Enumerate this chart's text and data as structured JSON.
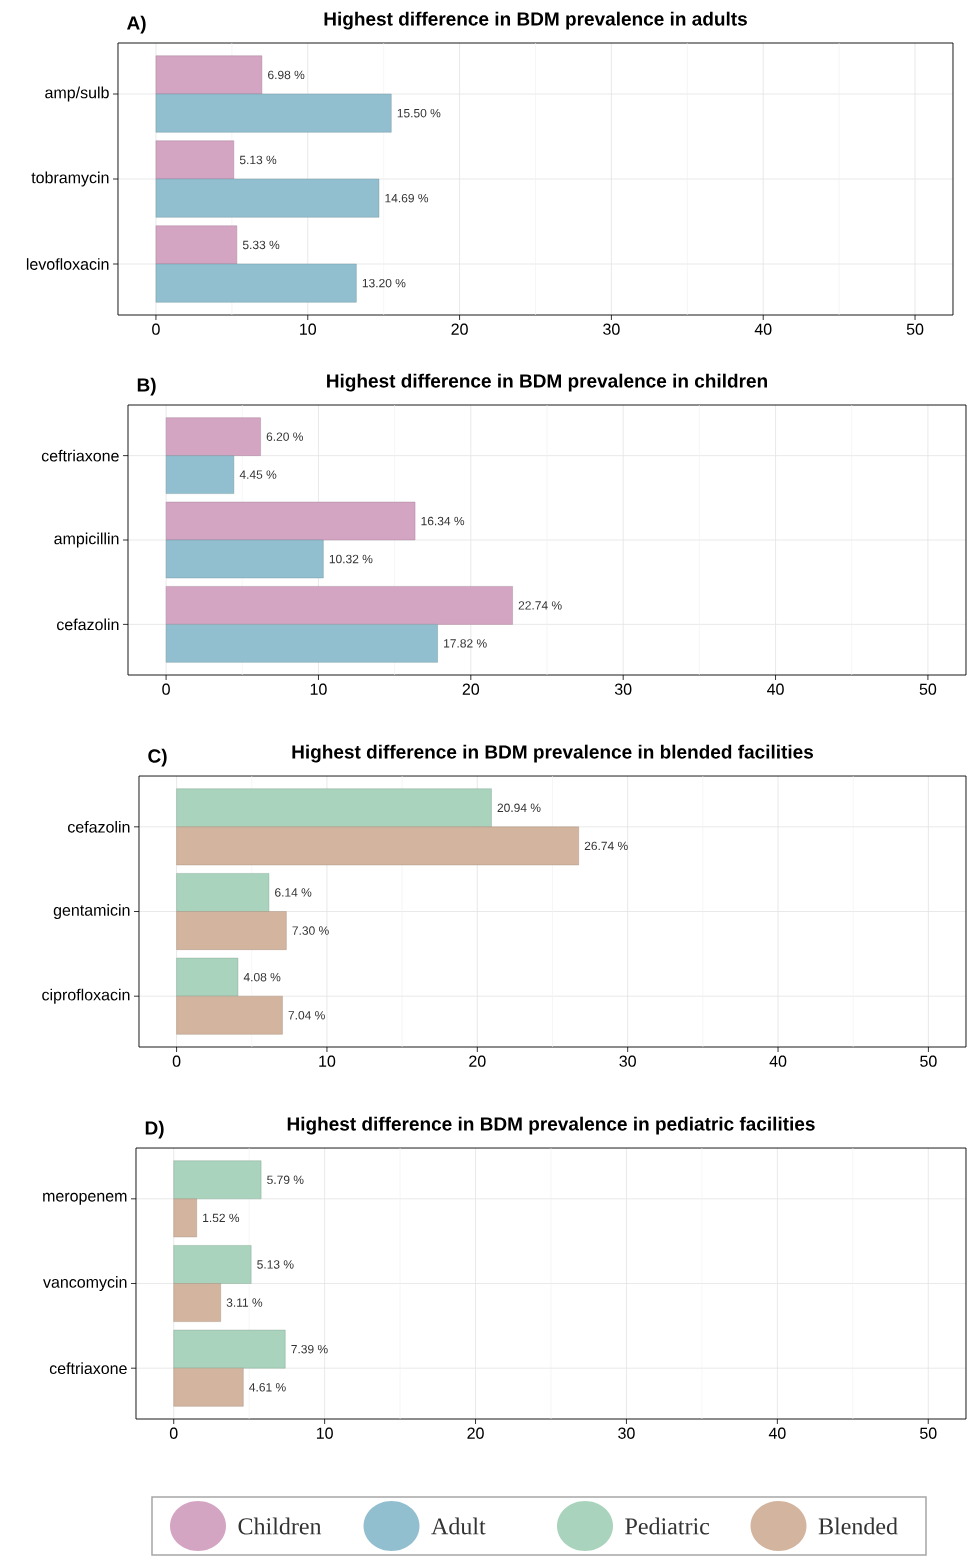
{
  "chart_data": [
    {
      "type": "bar",
      "orientation": "horizontal",
      "title": "Highest difference in BDM prevalence in adults",
      "annotations": [
        "A)"
      ],
      "categories": [
        "amp/sulb",
        "tobramycin",
        "levofloxacin"
      ],
      "series": [
        {
          "name": "Children",
          "color": "#d3a5c3",
          "values": [
            6.98,
            5.13,
            5.33
          ],
          "value_labels": [
            "6.98 %",
            "5.13 %",
            "5.33 %"
          ]
        },
        {
          "name": "Adult",
          "color": "#92bfcf",
          "values": [
            15.5,
            14.69,
            13.2
          ],
          "value_labels": [
            "15.50 %",
            "14.69 %",
            "13.20 %"
          ]
        }
      ],
      "xlim": [
        -2.5,
        52.5
      ],
      "xticks": [
        0,
        {
          "value": 5,
          "label": null
        },
        10,
        {
          "value": 15,
          "label": null
        },
        20,
        {
          "value": 25,
          "label": null
        },
        30,
        {
          "value": 35,
          "label": null
        },
        40,
        {
          "value": 45,
          "label": null
        },
        50
      ],
      "grid": true,
      "legend": "bottom"
    },
    {
      "type": "bar",
      "orientation": "horizontal",
      "title": "Highest difference in BDM prevalence in children",
      "annotations": [
        "B)"
      ],
      "categories": [
        "ceftriaxone",
        "ampicillin",
        "cefazolin"
      ],
      "series": [
        {
          "name": "Children",
          "color": "#d3a5c3",
          "values": [
            6.2,
            16.34,
            22.74
          ],
          "value_labels": [
            "6.20 %",
            "16.34 %",
            "22.74 %"
          ]
        },
        {
          "name": "Adult",
          "color": "#92bfcf",
          "values": [
            4.45,
            10.32,
            17.82
          ],
          "value_labels": [
            "4.45 %",
            "10.32 %",
            "17.82 %"
          ]
        }
      ],
      "xlim": [
        -2.5,
        52.5
      ],
      "xticks": [
        0,
        {
          "value": 5,
          "label": null
        },
        10,
        {
          "value": 15,
          "label": null
        },
        20,
        {
          "value": 25,
          "label": null
        },
        30,
        {
          "value": 35,
          "label": null
        },
        40,
        {
          "value": 45,
          "label": null
        },
        50
      ],
      "grid": true,
      "legend": "bottom"
    },
    {
      "type": "bar",
      "orientation": "horizontal",
      "title": "Highest difference in BDM prevalence in blended facilities",
      "annotations": [
        "C)"
      ],
      "categories": [
        "cefazolin",
        "gentamicin",
        "ciprofloxacin"
      ],
      "series": [
        {
          "name": "Pediatric",
          "color": "#a9d3bd",
          "values": [
            20.94,
            6.14,
            4.08
          ],
          "value_labels": [
            "20.94 %",
            "6.14 %",
            "4.08 %"
          ]
        },
        {
          "name": "Blended",
          "color": "#d3b59f",
          "values": [
            26.74,
            7.3,
            7.04
          ],
          "value_labels": [
            "26.74 %",
            "7.30 %",
            "7.04 %"
          ]
        }
      ],
      "xlim": [
        -2.5,
        52.5
      ],
      "xticks": [
        0,
        {
          "value": 5,
          "label": null
        },
        10,
        {
          "value": 15,
          "label": null
        },
        20,
        {
          "value": 25,
          "label": null
        },
        30,
        {
          "value": 35,
          "label": null
        },
        40,
        {
          "value": 45,
          "label": null
        },
        50
      ],
      "grid": true,
      "legend": "bottom"
    },
    {
      "type": "bar",
      "orientation": "horizontal",
      "title": "Highest difference in BDM prevalence in pediatric facilities",
      "annotations": [
        "D)"
      ],
      "categories": [
        "meropenem",
        "vancomycin",
        "ceftriaxone"
      ],
      "series": [
        {
          "name": "Pediatric",
          "color": "#a9d3bd",
          "values": [
            5.79,
            5.13,
            7.39
          ],
          "value_labels": [
            "5.79 %",
            "5.13 %",
            "7.39 %"
          ]
        },
        {
          "name": "Blended",
          "color": "#d3b59f",
          "values": [
            1.52,
            3.11,
            4.61
          ],
          "value_labels": [
            "1.52 %",
            "3.11 %",
            "4.61 %"
          ]
        }
      ],
      "xlim": [
        -2.5,
        52.5
      ],
      "xticks": [
        0,
        {
          "value": 5,
          "label": null
        },
        10,
        {
          "value": 15,
          "label": null
        },
        20,
        {
          "value": 25,
          "label": null
        },
        30,
        {
          "value": 35,
          "label": null
        },
        40,
        {
          "value": 45,
          "label": null
        },
        50
      ],
      "grid": true,
      "legend": "bottom"
    }
  ]
}
